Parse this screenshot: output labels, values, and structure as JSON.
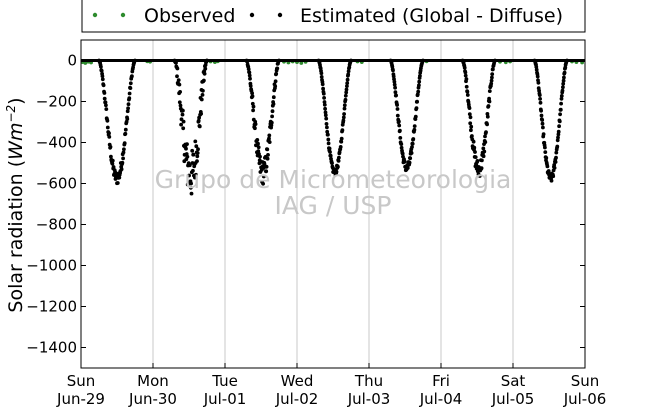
{
  "chart_data": {
    "type": "scatter",
    "title": "",
    "ylabel": "Solar radiation (Wm⁻²)",
    "ylabel_main": "Solar radiation (",
    "ylabel_unit": "Wm",
    "ylabel_exp": "−2",
    "ylabel_close": ")",
    "xlabel": "",
    "ylim": [
      -1500,
      100
    ],
    "yticks": [
      0,
      -200,
      -400,
      -600,
      -800,
      -1000,
      -1200,
      -1400
    ],
    "xlim": [
      0,
      7
    ],
    "xticks": [
      {
        "x": 0,
        "day": "Sun",
        "date": "Jun-29"
      },
      {
        "x": 1,
        "day": "Mon",
        "date": "Jun-30"
      },
      {
        "x": 2,
        "day": "Tue",
        "date": "Jul-01"
      },
      {
        "x": 3,
        "day": "Wed",
        "date": "Jul-02"
      },
      {
        "x": 4,
        "day": "Thu",
        "date": "Jul-03"
      },
      {
        "x": 5,
        "day": "Fri",
        "date": "Jul-04"
      },
      {
        "x": 6,
        "day": "Sat",
        "date": "Jul-05"
      },
      {
        "x": 7,
        "day": "Sun",
        "date": "Jul-06"
      }
    ],
    "grid": "vertical",
    "legend": {
      "placement": "top",
      "entries": [
        "Observed",
        "Estimated (Global - Diffuse)"
      ]
    },
    "watermark": [
      "Grupo de Micrometeorologia",
      "IAG / USP"
    ],
    "series": [
      {
        "name": "Observed",
        "color": "#2e8b2e",
        "note": "near-zero values during night hours",
        "points": [
          [
            0.02,
            -8
          ],
          [
            0.06,
            -12
          ],
          [
            0.1,
            -6
          ],
          [
            0.14,
            -10
          ],
          [
            0.92,
            -4
          ],
          [
            0.96,
            -6
          ],
          [
            1.8,
            -5
          ],
          [
            1.86,
            -8
          ],
          [
            1.9,
            -4
          ],
          [
            2.82,
            -6
          ],
          [
            2.88,
            -10
          ],
          [
            2.94,
            -5
          ],
          [
            3.0,
            -8
          ],
          [
            3.06,
            -12
          ],
          [
            3.12,
            -7
          ],
          [
            3.84,
            -5
          ],
          [
            3.9,
            -8
          ],
          [
            4.8,
            -4
          ],
          [
            5.82,
            -6
          ],
          [
            5.9,
            -9
          ],
          [
            5.96,
            -5
          ],
          [
            6.82,
            -5
          ],
          [
            6.88,
            -8
          ],
          [
            6.96,
            -10
          ]
        ]
      },
      {
        "name": "Estimated (Global - Diffuse)",
        "color": "#000000",
        "days": [
          {
            "start": 0.25,
            "end": 0.75,
            "peak": -575,
            "noise": 30
          },
          {
            "start": 1.3,
            "end": 1.75,
            "peak": -560,
            "noise": 120
          },
          {
            "start": 2.3,
            "end": 2.75,
            "peak": -545,
            "noise": 60
          },
          {
            "start": 3.3,
            "end": 3.75,
            "peak": -545,
            "noise": 15
          },
          {
            "start": 4.3,
            "end": 4.75,
            "peak": -525,
            "noise": 20
          },
          {
            "start": 5.3,
            "end": 5.75,
            "peak": -530,
            "noise": 40
          },
          {
            "start": 6.3,
            "end": 6.75,
            "peak": -575,
            "noise": 20
          }
        ]
      }
    ],
    "zero_line": true
  }
}
